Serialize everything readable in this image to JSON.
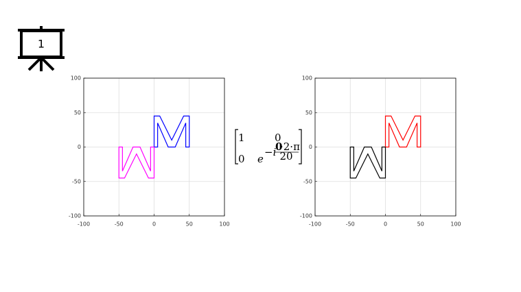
{
  "slide_number": "1",
  "chart_data": [
    {
      "type": "line",
      "xlim": [
        -100,
        100
      ],
      "ylim": [
        -100,
        100
      ],
      "xticks": [
        -100,
        -50,
        0,
        50,
        100
      ],
      "yticks": [
        -100,
        -50,
        0,
        50,
        100
      ],
      "grid": true,
      "series": [
        {
          "color": "#0000ff",
          "x": [
            0,
            0,
            8,
            25,
            42,
            50,
            50,
            45,
            45,
            30,
            20,
            5,
            5,
            0
          ],
          "values": [
            0,
            45,
            45,
            10,
            45,
            45,
            0,
            0,
            35,
            0,
            0,
            35,
            0,
            0
          ]
        },
        {
          "color": "#ff00ff",
          "x": [
            0,
            0,
            -8,
            -25,
            -42,
            -50,
            -50,
            -45,
            -45,
            -30,
            -20,
            -5,
            -5,
            0
          ],
          "values": [
            0,
            -45,
            -45,
            -10,
            -45,
            -45,
            0,
            0,
            -35,
            0,
            0,
            -35,
            0,
            0
          ]
        }
      ]
    },
    {
      "type": "line",
      "xlim": [
        -100,
        100
      ],
      "ylim": [
        -100,
        100
      ],
      "xticks": [
        -100,
        -50,
        0,
        50,
        100
      ],
      "yticks": [
        -100,
        -50,
        0,
        50,
        100
      ],
      "grid": true,
      "series": [
        {
          "color": "#ff0000",
          "x": [
            0,
            0,
            8,
            25,
            42,
            50,
            50,
            45,
            45,
            30,
            20,
            5,
            5,
            0
          ],
          "values": [
            0,
            45,
            45,
            10,
            45,
            45,
            0,
            0,
            35,
            0,
            0,
            35,
            0,
            0
          ]
        },
        {
          "color": "#000000",
          "x": [
            0,
            0,
            -8,
            -25,
            -42,
            -50,
            -50,
            -45,
            -45,
            -30,
            -20,
            -5,
            -5,
            0
          ],
          "values": [
            0,
            -45,
            -45,
            -10,
            -45,
            -45,
            0,
            0,
            -35,
            0,
            0,
            -35,
            0,
            0
          ]
        }
      ]
    }
  ],
  "matrix": {
    "a11": "1",
    "a12": "0",
    "a21": "0",
    "base": "e",
    "exp_prefix": "−i",
    "exp_highlight": "0",
    "exp_numerator": "·2·π",
    "exp_denominator": "20"
  }
}
